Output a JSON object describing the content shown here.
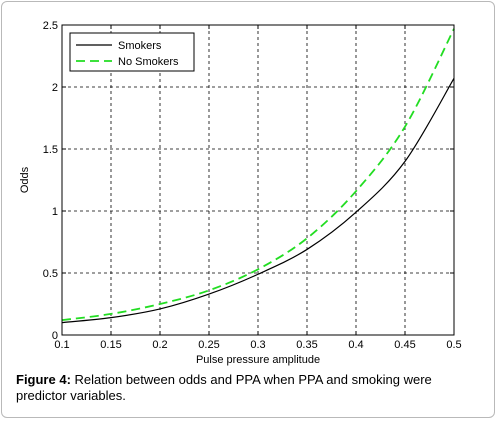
{
  "chart_data": {
    "type": "line",
    "xlabel": "Pulse pressure amplitude",
    "ylabel": "Odds",
    "xlim": [
      0.1,
      0.5
    ],
    "ylim": [
      0,
      2.5
    ],
    "xticks": [
      "0.1",
      "0.15",
      "0.2",
      "0.25",
      "0.3",
      "0.35",
      "0.4",
      "0.45",
      "0.5"
    ],
    "yticks": [
      "0",
      "0.5",
      "1",
      "1.5",
      "2",
      "2.5"
    ],
    "grid": true,
    "legend_position": "top-left",
    "x": [
      0.1,
      0.15,
      0.2,
      0.25,
      0.3,
      0.35,
      0.4,
      0.45,
      0.5
    ],
    "series": [
      {
        "name": "Smokers",
        "color": "#000000",
        "dash": "solid",
        "values": [
          0.1,
          0.14,
          0.21,
          0.33,
          0.49,
          0.69,
          0.99,
          1.4,
          2.07
        ]
      },
      {
        "name": "No Smokers",
        "color": "#22dd22",
        "dash": "dashed",
        "values": [
          0.12,
          0.17,
          0.25,
          0.36,
          0.53,
          0.78,
          1.16,
          1.68,
          2.47
        ]
      }
    ]
  },
  "caption": {
    "label": "Figure 4:",
    "text": " Relation between odds and PPA when PPA and smoking were predictor variables."
  }
}
